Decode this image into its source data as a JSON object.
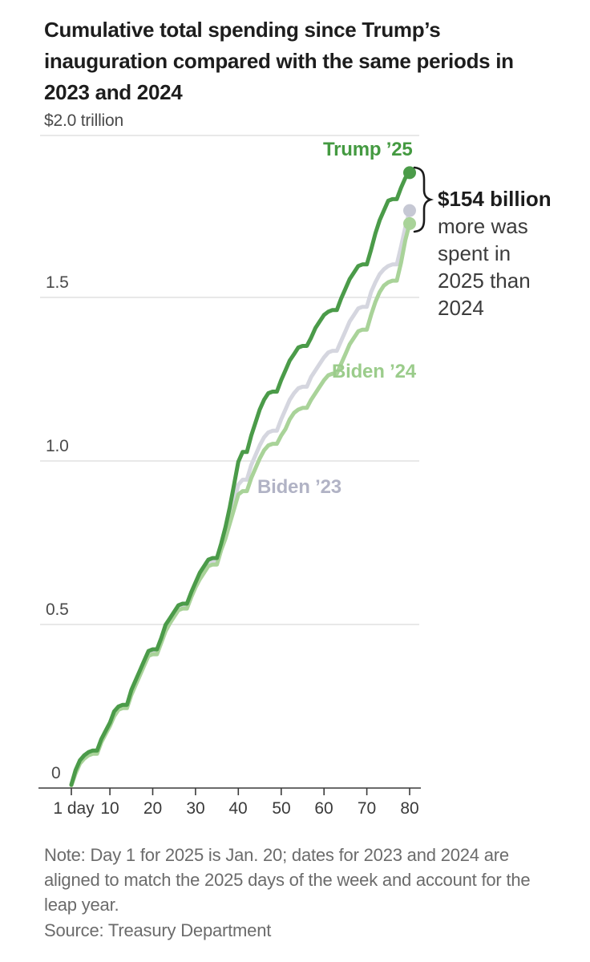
{
  "chart_data": {
    "type": "line",
    "title": "Cumulative total spending since Trump’s inauguration compared with the same periods in 2023 and 2024",
    "y_ticks": [
      "$2.0 trillion",
      "1.5",
      "1.0",
      "0.5",
      "0"
    ],
    "ylim": [
      0,
      2.0
    ],
    "y_unit": "trillion dollars",
    "x_ticks": [
      "1 day",
      "10",
      "20",
      "30",
      "40",
      "50",
      "60",
      "70",
      "80"
    ],
    "xlim": [
      1,
      80
    ],
    "x_unit": "days since inauguration (daily values, day 1 to day 80)",
    "grid": "horizontal",
    "legend_position": "labels-on-chart",
    "series": [
      {
        "id": "biden-23",
        "name": "Biden ’23",
        "color": "#d5d6df",
        "label_color": "#b1b3c5",
        "end_value_trillion": 1.77,
        "values": [
          0.012,
          0.05,
          0.08,
          0.095,
          0.105,
          0.11,
          0.11,
          0.145,
          0.17,
          0.195,
          0.23,
          0.245,
          0.25,
          0.25,
          0.29,
          0.32,
          0.35,
          0.38,
          0.41,
          0.415,
          0.415,
          0.45,
          0.49,
          0.51,
          0.53,
          0.55,
          0.555,
          0.555,
          0.59,
          0.62,
          0.65,
          0.67,
          0.69,
          0.695,
          0.695,
          0.74,
          0.78,
          0.83,
          0.88,
          0.93,
          0.945,
          0.945,
          0.99,
          1.02,
          1.05,
          1.075,
          1.09,
          1.095,
          1.095,
          1.13,
          1.16,
          1.19,
          1.21,
          1.225,
          1.23,
          1.23,
          1.26,
          1.28,
          1.3,
          1.32,
          1.335,
          1.34,
          1.34,
          1.37,
          1.4,
          1.43,
          1.45,
          1.47,
          1.475,
          1.475,
          1.52,
          1.55,
          1.575,
          1.59,
          1.6,
          1.605,
          1.605,
          1.66,
          1.72,
          1.77
        ]
      },
      {
        "id": "biden-24",
        "name": "Biden ’24",
        "color": "#a9d399",
        "label_color": "#9bcc8b",
        "end_value_trillion": 1.73,
        "values": [
          0.008,
          0.045,
          0.075,
          0.09,
          0.1,
          0.105,
          0.105,
          0.14,
          0.165,
          0.19,
          0.22,
          0.24,
          0.245,
          0.245,
          0.285,
          0.315,
          0.345,
          0.375,
          0.405,
          0.41,
          0.41,
          0.445,
          0.48,
          0.505,
          0.525,
          0.545,
          0.55,
          0.55,
          0.585,
          0.615,
          0.64,
          0.66,
          0.68,
          0.685,
          0.685,
          0.73,
          0.765,
          0.81,
          0.855,
          0.9,
          0.91,
          0.91,
          0.95,
          0.98,
          1.01,
          1.035,
          1.05,
          1.055,
          1.055,
          1.08,
          1.1,
          1.13,
          1.15,
          1.16,
          1.165,
          1.165,
          1.19,
          1.21,
          1.23,
          1.25,
          1.265,
          1.27,
          1.27,
          1.3,
          1.33,
          1.36,
          1.38,
          1.4,
          1.405,
          1.405,
          1.45,
          1.49,
          1.52,
          1.54,
          1.55,
          1.555,
          1.555,
          1.61,
          1.68,
          1.73
        ]
      },
      {
        "id": "trump-25",
        "name": "Trump ’25",
        "color": "#4b9b49",
        "label_color": "#449a41",
        "end_value_trillion": 1.886,
        "values": [
          0.01,
          0.055,
          0.085,
          0.1,
          0.11,
          0.115,
          0.115,
          0.15,
          0.175,
          0.2,
          0.235,
          0.25,
          0.255,
          0.255,
          0.3,
          0.33,
          0.36,
          0.39,
          0.42,
          0.425,
          0.425,
          0.46,
          0.5,
          0.52,
          0.54,
          0.56,
          0.565,
          0.565,
          0.6,
          0.63,
          0.66,
          0.68,
          0.7,
          0.705,
          0.705,
          0.75,
          0.8,
          0.86,
          0.93,
          1.0,
          1.03,
          1.03,
          1.08,
          1.12,
          1.16,
          1.19,
          1.21,
          1.215,
          1.215,
          1.25,
          1.28,
          1.31,
          1.33,
          1.35,
          1.355,
          1.355,
          1.38,
          1.41,
          1.43,
          1.45,
          1.46,
          1.465,
          1.465,
          1.5,
          1.53,
          1.56,
          1.58,
          1.6,
          1.605,
          1.605,
          1.65,
          1.7,
          1.74,
          1.77,
          1.8,
          1.805,
          1.805,
          1.84,
          1.87,
          1.886
        ]
      }
    ],
    "annotation": {
      "highlight": "$154 billion",
      "text": "more was spent in 2025 than 2024"
    },
    "note": "Note: Day 1 for 2025 is Jan. 20; dates for 2023 and 2024 are aligned to match the 2025 days of the week and account for the leap year.",
    "source": "Source: Treasury Department"
  }
}
